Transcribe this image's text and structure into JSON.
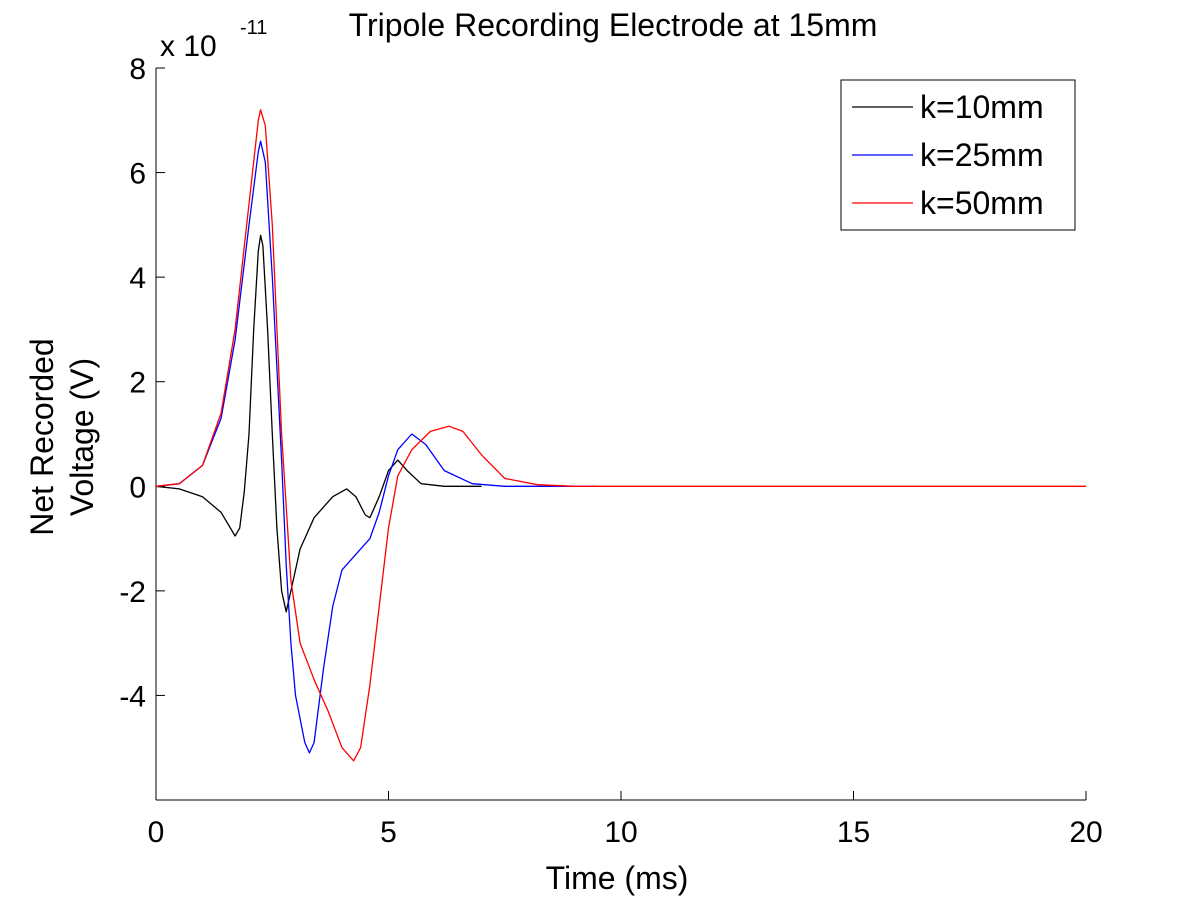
{
  "chart_data": {
    "type": "line",
    "title": "Tripole Recording Electrode at 15mm",
    "xlabel": "Time (ms)",
    "ylabel_lines": [
      "Net Recorded",
      "Voltage (V)"
    ],
    "exponent_base": "x 10",
    "exponent_power": "-11",
    "xlim": [
      0,
      20
    ],
    "ylim": [
      -6,
      8
    ],
    "x_ticks": [
      0,
      5,
      10,
      15,
      20
    ],
    "y_ticks": [
      -4,
      -2,
      0,
      2,
      4,
      6,
      8
    ],
    "x_tick_labels": [
      "0",
      "5",
      "10",
      "15",
      "20"
    ],
    "y_tick_labels": [
      "-4",
      "-2",
      "0",
      "2",
      "4",
      "6",
      "8"
    ],
    "grid": false,
    "legend_position": "top-right",
    "series": [
      {
        "name": "k=10mm",
        "color": "#000000",
        "points": [
          [
            0,
            0
          ],
          [
            0.5,
            -0.05
          ],
          [
            1.0,
            -0.2
          ],
          [
            1.4,
            -0.5
          ],
          [
            1.7,
            -0.95
          ],
          [
            1.8,
            -0.8
          ],
          [
            1.9,
            -0.1
          ],
          [
            2.0,
            1.0
          ],
          [
            2.1,
            3.0
          ],
          [
            2.2,
            4.5
          ],
          [
            2.25,
            4.8
          ],
          [
            2.3,
            4.6
          ],
          [
            2.4,
            3.0
          ],
          [
            2.5,
            1.0
          ],
          [
            2.6,
            -0.8
          ],
          [
            2.7,
            -2.0
          ],
          [
            2.8,
            -2.4
          ],
          [
            2.9,
            -2.0
          ],
          [
            3.1,
            -1.2
          ],
          [
            3.4,
            -0.6
          ],
          [
            3.8,
            -0.2
          ],
          [
            4.1,
            -0.05
          ],
          [
            4.3,
            -0.2
          ],
          [
            4.5,
            -0.55
          ],
          [
            4.6,
            -0.6
          ],
          [
            4.8,
            -0.2
          ],
          [
            5.0,
            0.3
          ],
          [
            5.2,
            0.5
          ],
          [
            5.4,
            0.3
          ],
          [
            5.7,
            0.05
          ],
          [
            6.2,
            0
          ],
          [
            7.0,
            0
          ]
        ]
      },
      {
        "name": "k=25mm",
        "color": "#0000ff",
        "points": [
          [
            0,
            0
          ],
          [
            0.5,
            0.05
          ],
          [
            1.0,
            0.4
          ],
          [
            1.4,
            1.3
          ],
          [
            1.7,
            2.8
          ],
          [
            2.0,
            5.0
          ],
          [
            2.2,
            6.4
          ],
          [
            2.25,
            6.6
          ],
          [
            2.35,
            6.2
          ],
          [
            2.5,
            4.0
          ],
          [
            2.7,
            0.5
          ],
          [
            2.8,
            -1.5
          ],
          [
            2.9,
            -3.0
          ],
          [
            3.0,
            -4.0
          ],
          [
            3.2,
            -4.9
          ],
          [
            3.3,
            -5.1
          ],
          [
            3.4,
            -4.9
          ],
          [
            3.6,
            -3.5
          ],
          [
            3.8,
            -2.3
          ],
          [
            4.0,
            -1.6
          ],
          [
            4.3,
            -1.3
          ],
          [
            4.6,
            -1.0
          ],
          [
            4.8,
            -0.5
          ],
          [
            5.0,
            0.2
          ],
          [
            5.2,
            0.7
          ],
          [
            5.5,
            1.0
          ],
          [
            5.8,
            0.8
          ],
          [
            6.2,
            0.3
          ],
          [
            6.8,
            0.05
          ],
          [
            7.5,
            0
          ],
          [
            9.5,
            0
          ]
        ]
      },
      {
        "name": "k=50mm",
        "color": "#ff0000",
        "points": [
          [
            0,
            0
          ],
          [
            0.5,
            0.05
          ],
          [
            1.0,
            0.4
          ],
          [
            1.4,
            1.4
          ],
          [
            1.7,
            3.0
          ],
          [
            2.0,
            5.4
          ],
          [
            2.2,
            7.0
          ],
          [
            2.25,
            7.2
          ],
          [
            2.35,
            6.9
          ],
          [
            2.5,
            5.0
          ],
          [
            2.7,
            1.0
          ],
          [
            2.9,
            -1.8
          ],
          [
            3.1,
            -3.0
          ],
          [
            3.4,
            -3.7
          ],
          [
            3.7,
            -4.3
          ],
          [
            4.0,
            -5.0
          ],
          [
            4.25,
            -5.25
          ],
          [
            4.4,
            -5.0
          ],
          [
            4.6,
            -3.8
          ],
          [
            4.8,
            -2.3
          ],
          [
            5.0,
            -0.8
          ],
          [
            5.2,
            0.2
          ],
          [
            5.5,
            0.7
          ],
          [
            5.9,
            1.05
          ],
          [
            6.3,
            1.15
          ],
          [
            6.6,
            1.05
          ],
          [
            7.0,
            0.6
          ],
          [
            7.5,
            0.15
          ],
          [
            8.2,
            0.03
          ],
          [
            9.0,
            0
          ],
          [
            20,
            0
          ]
        ]
      }
    ]
  }
}
